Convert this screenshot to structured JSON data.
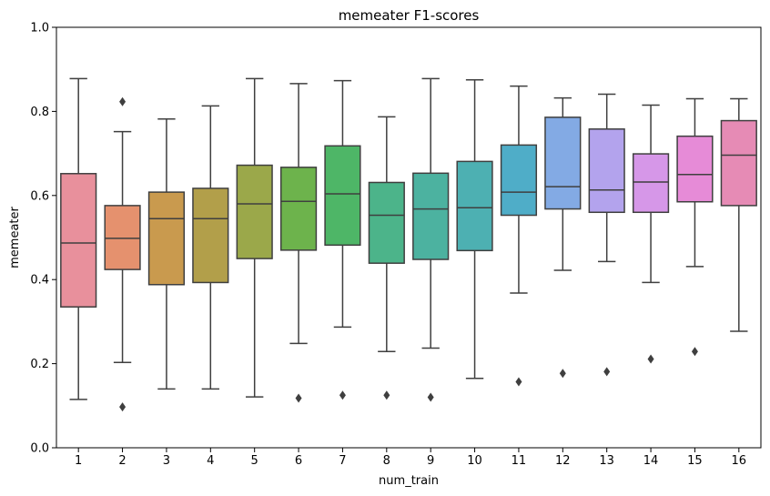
{
  "chart_data": {
    "type": "box",
    "title": "memeater F1-scores",
    "xlabel": "num_train",
    "ylabel": "memeater",
    "ylim": [
      0.0,
      1.0
    ],
    "yticks": [
      "0.0",
      "0.2",
      "0.4",
      "0.6",
      "0.8",
      "1.0"
    ],
    "categories": [
      "1",
      "2",
      "3",
      "4",
      "5",
      "6",
      "7",
      "8",
      "9",
      "10",
      "11",
      "12",
      "13",
      "14",
      "15",
      "16"
    ],
    "grid": false,
    "boxes": [
      {
        "x": "1",
        "whisker_low": 0.115,
        "q1": 0.335,
        "median": 0.487,
        "q3": 0.652,
        "whisker_high": 0.878,
        "outliers": [],
        "color": "#e8909c"
      },
      {
        "x": "2",
        "whisker_low": 0.203,
        "q1": 0.424,
        "median": 0.498,
        "q3": 0.576,
        "whisker_high": 0.752,
        "outliers": [
          0.823,
          0.097
        ],
        "color": "#e5916e"
      },
      {
        "x": "3",
        "whisker_low": 0.14,
        "q1": 0.388,
        "median": 0.545,
        "q3": 0.608,
        "whisker_high": 0.782,
        "outliers": [],
        "color": "#c99a4e"
      },
      {
        "x": "4",
        "whisker_low": 0.14,
        "q1": 0.393,
        "median": 0.545,
        "q3": 0.617,
        "whisker_high": 0.813,
        "outliers": [],
        "color": "#b29f4a"
      },
      {
        "x": "5",
        "whisker_low": 0.121,
        "q1": 0.45,
        "median": 0.58,
        "q3": 0.672,
        "whisker_high": 0.878,
        "outliers": [],
        "color": "#9ba84a"
      },
      {
        "x": "6",
        "whisker_low": 0.248,
        "q1": 0.47,
        "median": 0.586,
        "q3": 0.667,
        "whisker_high": 0.866,
        "outliers": [
          0.118
        ],
        "color": "#6db34c"
      },
      {
        "x": "7",
        "whisker_low": 0.287,
        "q1": 0.482,
        "median": 0.604,
        "q3": 0.718,
        "whisker_high": 0.873,
        "outliers": [
          0.125
        ],
        "color": "#4eb667"
      },
      {
        "x": "8",
        "whisker_low": 0.229,
        "q1": 0.439,
        "median": 0.553,
        "q3": 0.631,
        "whisker_high": 0.787,
        "outliers": [
          0.125
        ],
        "color": "#4cb48a"
      },
      {
        "x": "9",
        "whisker_low": 0.237,
        "q1": 0.448,
        "median": 0.568,
        "q3": 0.653,
        "whisker_high": 0.878,
        "outliers": [
          0.12
        ],
        "color": "#4cb2a0"
      },
      {
        "x": "10",
        "whisker_low": 0.165,
        "q1": 0.469,
        "median": 0.571,
        "q3": 0.681,
        "whisker_high": 0.875,
        "outliers": [],
        "color": "#4db0b2"
      },
      {
        "x": "11",
        "whisker_low": 0.368,
        "q1": 0.553,
        "median": 0.608,
        "q3": 0.72,
        "whisker_high": 0.86,
        "outliers": [
          0.157
        ],
        "color": "#4fadc8"
      },
      {
        "x": "12",
        "whisker_low": 0.422,
        "q1": 0.568,
        "median": 0.621,
        "q3": 0.786,
        "whisker_high": 0.832,
        "outliers": [
          0.177
        ],
        "color": "#83aae4"
      },
      {
        "x": "13",
        "whisker_low": 0.443,
        "q1": 0.56,
        "median": 0.613,
        "q3": 0.758,
        "whisker_high": 0.841,
        "outliers": [
          0.181
        ],
        "color": "#b3a3ed"
      },
      {
        "x": "14",
        "whisker_low": 0.393,
        "q1": 0.56,
        "median": 0.632,
        "q3": 0.699,
        "whisker_high": 0.815,
        "outliers": [
          0.211
        ],
        "color": "#d697e8"
      },
      {
        "x": "15",
        "whisker_low": 0.431,
        "q1": 0.585,
        "median": 0.65,
        "q3": 0.741,
        "whisker_high": 0.83,
        "outliers": [
          0.229
        ],
        "color": "#e68bd7"
      },
      {
        "x": "16",
        "whisker_low": 0.277,
        "q1": 0.576,
        "median": 0.696,
        "q3": 0.778,
        "whisker_high": 0.83,
        "outliers": [],
        "color": "#e68bb5"
      }
    ]
  }
}
